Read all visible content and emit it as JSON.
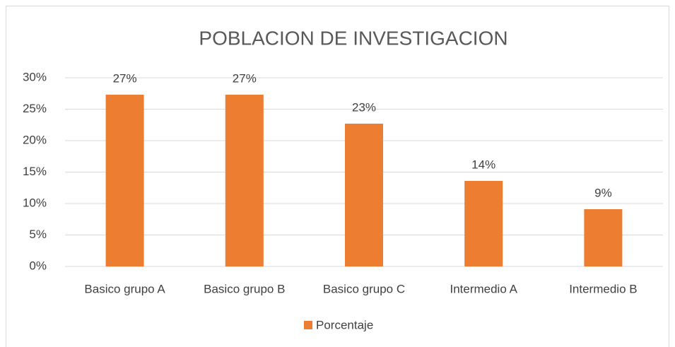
{
  "chart_data": {
    "type": "bar",
    "title": "POBLACION DE INVESTIGACION",
    "categories": [
      "Basico grupo A",
      "Basico grupo B",
      "Basico grupo C",
      "Intermedio A",
      "Intermedio B"
    ],
    "series": [
      {
        "name": "Porcentaje",
        "color": "#ed7d31",
        "values": [
          27.3,
          27.3,
          22.7,
          13.6,
          9.1
        ],
        "value_labels": [
          "27%",
          "27%",
          "23%",
          "14%",
          "9%"
        ]
      }
    ],
    "ylim": [
      0,
      30
    ],
    "yticks": [
      {
        "value": 0,
        "label": "0%"
      },
      {
        "value": 5,
        "label": "5%"
      },
      {
        "value": 10,
        "label": "10%"
      },
      {
        "value": 15,
        "label": "15%"
      },
      {
        "value": 20,
        "label": "20%"
      },
      {
        "value": 25,
        "label": "25%"
      },
      {
        "value": 30,
        "label": "30%"
      }
    ],
    "grid": true,
    "legend": "bottom"
  }
}
